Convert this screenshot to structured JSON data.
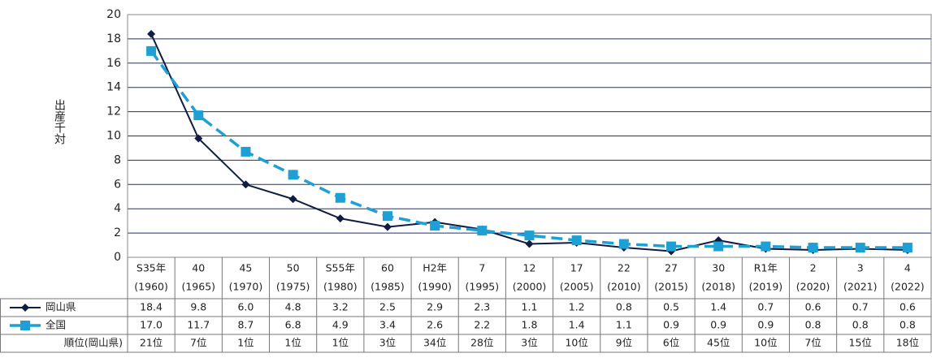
{
  "chart_data": {
    "type": "line",
    "y_label": "出産千対",
    "categories": [
      "S35年",
      "40",
      "45",
      "50",
      "S55年",
      "60",
      "H2年",
      "7",
      "12",
      "17",
      "22",
      "27",
      "30",
      "R1年",
      "2",
      "3",
      "4"
    ],
    "category_years": [
      "(1960)",
      "(1965)",
      "(1970)",
      "(1975)",
      "(1980)",
      "(1985)",
      "(1990)",
      "(1995)",
      "(2000)",
      "(2005)",
      "(2010)",
      "(2015)",
      "(2018)",
      "(2019)",
      "(2020)",
      "(2021)",
      "(2022)"
    ],
    "series": [
      {
        "name": "岡山県",
        "color": "#0f1d44",
        "marker": "diamond",
        "dashed": false,
        "values": [
          18.4,
          9.8,
          6.0,
          4.8,
          3.2,
          2.5,
          2.9,
          2.3,
          1.1,
          1.2,
          0.8,
          0.5,
          1.4,
          0.7,
          0.6,
          0.7,
          0.6
        ],
        "value_labels": [
          "18.4",
          "9.8",
          "6.0",
          "4.8",
          "3.2",
          "2.5",
          "2.9",
          "2.3",
          "1.1",
          "1.2",
          "0.8",
          "0.5",
          "1.4",
          "0.7",
          "0.6",
          "0.7",
          "0.6"
        ]
      },
      {
        "name": "全国",
        "color": "#1ea0d5",
        "marker": "square",
        "dashed": true,
        "values": [
          17.0,
          11.7,
          8.7,
          6.8,
          4.9,
          3.4,
          2.6,
          2.2,
          1.8,
          1.4,
          1.1,
          0.9,
          0.9,
          0.9,
          0.8,
          0.8,
          0.8
        ],
        "value_labels": [
          "17.0",
          "11.7",
          "8.7",
          "6.8",
          "4.9",
          "3.4",
          "2.6",
          "2.2",
          "1.8",
          "1.4",
          "1.1",
          "0.9",
          "0.9",
          "0.9",
          "0.8",
          "0.8",
          "0.8"
        ]
      }
    ],
    "rank_row": {
      "label": "順位(岡山県)",
      "values": [
        "21位",
        "7位",
        "1位",
        "1位",
        "1位",
        "3位",
        "34位",
        "28位",
        "3位",
        "10位",
        "9位",
        "6位",
        "45位",
        "10位",
        "7位",
        "15位",
        "18位"
      ]
    },
    "ylim": [
      0,
      20
    ],
    "yticks": [
      0,
      2,
      4,
      6,
      8,
      10,
      12,
      14,
      16,
      18,
      20
    ],
    "grid": true,
    "grid_color": "#1c2f80"
  }
}
